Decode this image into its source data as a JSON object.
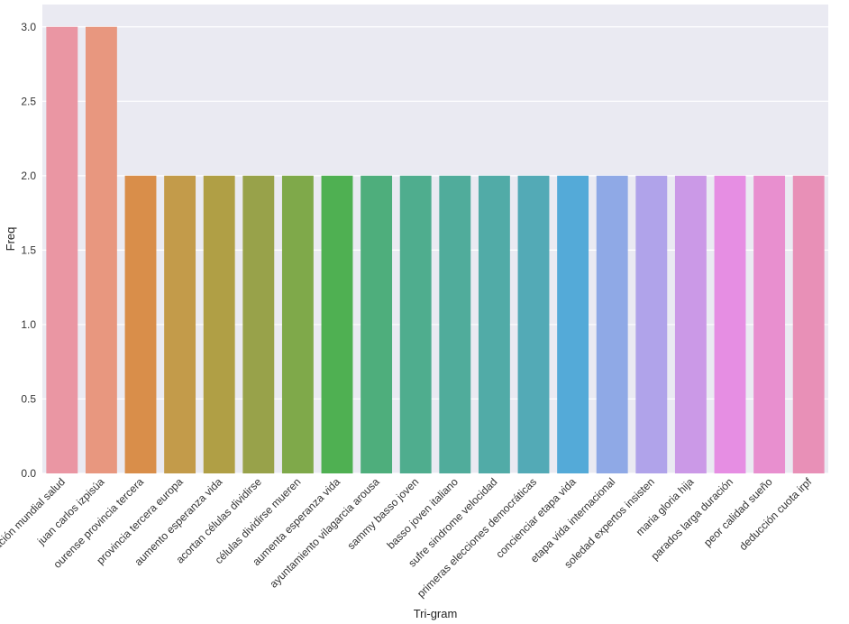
{
  "chart_data": {
    "type": "bar",
    "title": "",
    "xlabel": "Tri-gram",
    "ylabel": "Freq",
    "ylim": [
      0,
      3.15
    ],
    "yticks": [
      0.0,
      0.5,
      1.0,
      1.5,
      2.0,
      2.5,
      3.0
    ],
    "ytick_labels": [
      "0.0",
      "0.5",
      "1.0",
      "1.5",
      "2.0",
      "2.5",
      "3.0"
    ],
    "grid": true,
    "background": "#eaeaf2",
    "categories": [
      "organización mundial salud",
      "juan carlos izpisúa",
      "ourense provincia tercera",
      "provincia tercera europa",
      "aumento esperanza vida",
      "acortan células dividirse",
      "células dividirse mueren",
      "aumenta esperanza vida",
      "ayuntamiento vilagarcia arousa",
      "sammy basso joven",
      "basso joven italiano",
      "sufre sindrome velocidad",
      "primeras elecciones democráticas",
      "concienciar etapa vida",
      "etapa vida internacional",
      "soledad expertos insisten",
      "maria gloria hija",
      "parados larga duración",
      "peor calidad sueño",
      "deducción cuota irpf"
    ],
    "values": [
      3,
      3,
      2,
      2,
      2,
      2,
      2,
      2,
      2,
      2,
      2,
      2,
      2,
      2,
      2,
      2,
      2,
      2,
      2,
      2
    ],
    "colors": [
      "#ea96a3",
      "#e8977f",
      "#d98e4a",
      "#c39b4a",
      "#b09f45",
      "#98a24a",
      "#7fa94a",
      "#4fb052",
      "#4eae7c",
      "#4fad8e",
      "#50ac9b",
      "#51aba7",
      "#53aab6",
      "#54aad8",
      "#8fa9e6",
      "#b0a3ea",
      "#cb99e7",
      "#e68ee3",
      "#e88fcf",
      "#e890b7"
    ]
  }
}
